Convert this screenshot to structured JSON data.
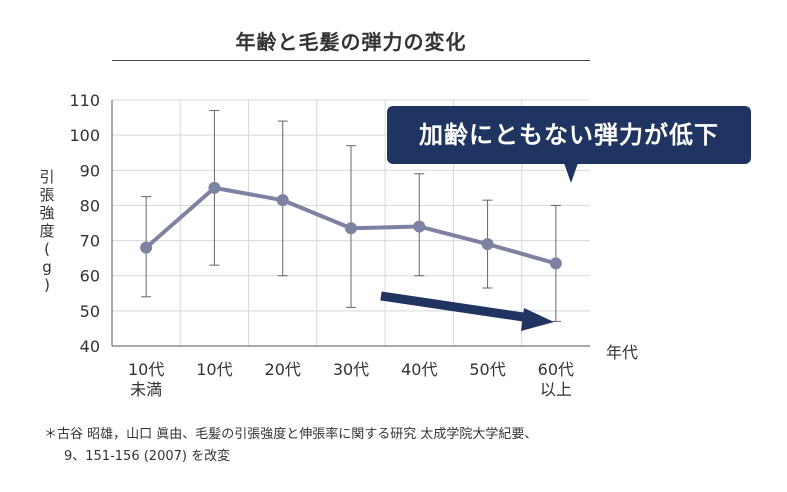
{
  "chart_data": {
    "type": "line",
    "title": "年齢と毛髪の弾力の変化",
    "ylabel": "引張強度(g)",
    "xlabel": "年代",
    "categories": [
      [
        "10代",
        "未満"
      ],
      [
        "10代"
      ],
      [
        "20代"
      ],
      [
        "30代"
      ],
      [
        "40代"
      ],
      [
        "50代"
      ],
      [
        "60代",
        "以上"
      ]
    ],
    "values": [
      68,
      85,
      81.5,
      73.5,
      74,
      69,
      63.5
    ],
    "error_upper": [
      82.5,
      107,
      104,
      97,
      89,
      81.5,
      80
    ],
    "error_lower": [
      54,
      63,
      60,
      51,
      60,
      56.5,
      47
    ],
    "ylim": [
      40,
      110
    ],
    "yticks": [
      40,
      50,
      60,
      70,
      80,
      90,
      100,
      110
    ],
    "grid": true,
    "colors": {
      "line": "#7d82a2",
      "grid": "#d8d8d8",
      "error": "#666666",
      "trend_arrow": "#1f3461"
    }
  },
  "callout": {
    "text": "加齢にともない弾力が低下",
    "color": "#1f3461"
  },
  "footnote": {
    "line1": "＊古谷 昭雄，山口 眞由、毛髪の引張強度と伸張率に関する研究  太成学院大学紀要、",
    "line2": "9、151-156 (2007) を改変"
  }
}
